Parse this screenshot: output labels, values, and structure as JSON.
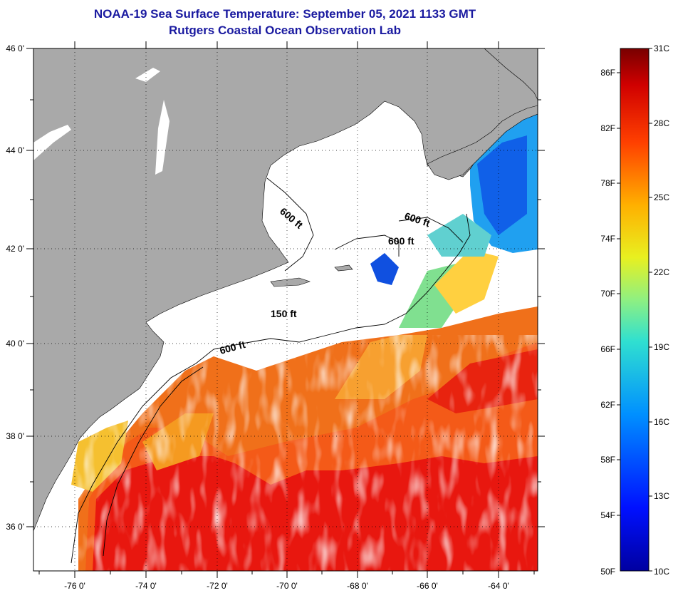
{
  "header": {
    "title": "NOAA-19 Sea Surface Temperature:  September 05, 2021 1133 GMT",
    "subtitle": "Rutgers Coastal Ocean Observation Lab"
  },
  "map": {
    "lat_labels": [
      "46 0'",
      "44 0'",
      "42 0'",
      "40 0'",
      "38 0'",
      "36 0'"
    ],
    "lon_labels": [
      "-76 0'",
      "-74 0'",
      "-72 0'",
      "-70 0'",
      "-68 0'",
      "-66 0'",
      "-64 0'"
    ],
    "contour_labels": [
      "600 ft",
      "600 ft",
      "600 ft",
      "150 ft",
      "600 ft"
    ],
    "colors": {
      "land": "#a9a9a9",
      "cloud": "#ffffff",
      "warm": "#e8170f",
      "cold": "#1050e0"
    }
  },
  "colorbar": {
    "fahrenheit_labels": [
      "86F",
      "82F",
      "78F",
      "74F",
      "70F",
      "66F",
      "62F",
      "58F",
      "54F",
      "50F"
    ],
    "celsius_labels": [
      "31C",
      "28C",
      "25C",
      "22C",
      "19C",
      "16C",
      "13C",
      "10C"
    ],
    "range_celsius": [
      10,
      31
    ],
    "range_fahrenheit": [
      50,
      88
    ]
  }
}
